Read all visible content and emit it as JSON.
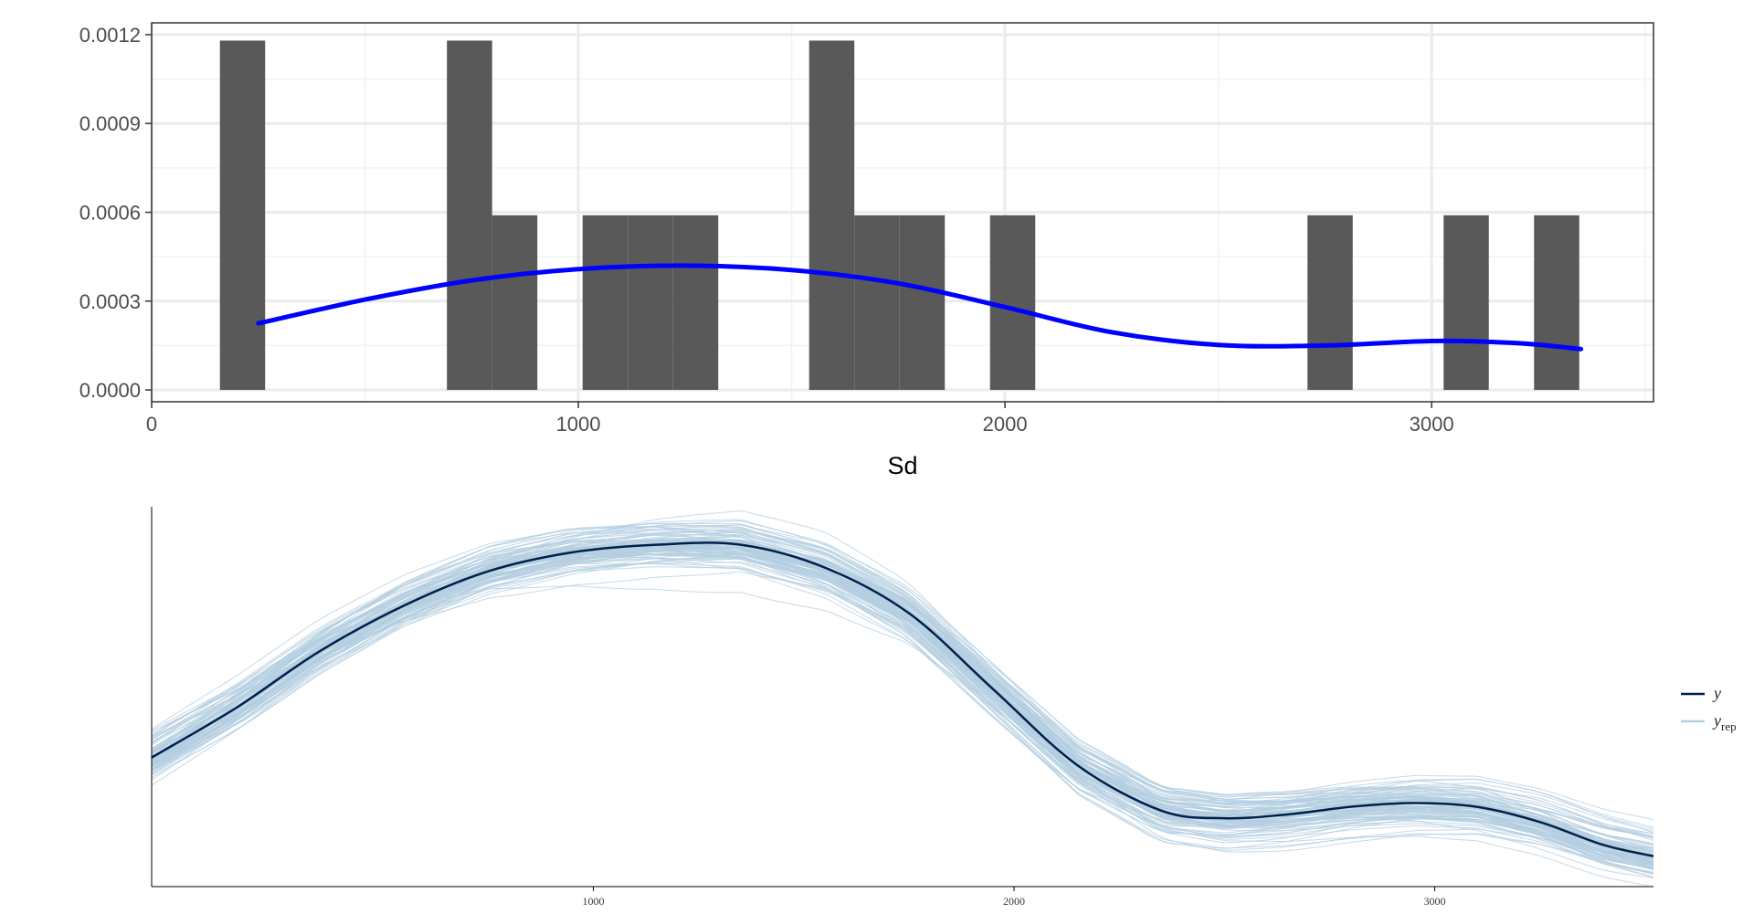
{
  "chart_data": [
    {
      "type": "bar",
      "subtype": "histogram-with-smooth",
      "xlabel": "Sd",
      "ylabel": "",
      "xlim": [
        0,
        3520
      ],
      "ylim": [
        -4e-05,
        0.00124
      ],
      "x_ticks": [
        0,
        1000,
        2000,
        3000
      ],
      "x_tick_labels": [
        "0",
        "1000",
        "2000",
        "3000"
      ],
      "y_ticks": [
        0,
        0.0003,
        0.0006,
        0.0009,
        0.0012
      ],
      "y_tick_labels": [
        "0.0000",
        "0.0003",
        "0.0006",
        "0.0009",
        "0.0012"
      ],
      "grid": true,
      "bins": [
        {
          "x0": 160,
          "x1": 266,
          "value": 0.00118
        },
        {
          "x0": 692,
          "x1": 798,
          "value": 0.00118
        },
        {
          "x0": 798,
          "x1": 904,
          "value": 0.00059
        },
        {
          "x0": 1010,
          "x1": 1116,
          "value": 0.00059
        },
        {
          "x0": 1116,
          "x1": 1222,
          "value": 0.00059
        },
        {
          "x0": 1222,
          "x1": 1328,
          "value": 0.00059
        },
        {
          "x0": 1541,
          "x1": 1647,
          "value": 0.00118
        },
        {
          "x0": 1647,
          "x1": 1753,
          "value": 0.00059
        },
        {
          "x0": 1753,
          "x1": 1859,
          "value": 0.00059
        },
        {
          "x0": 1965,
          "x1": 2071,
          "value": 0.00059
        },
        {
          "x0": 2709,
          "x1": 2815,
          "value": 0.00059
        },
        {
          "x0": 3028,
          "x1": 3134,
          "value": 0.00059
        },
        {
          "x0": 3240,
          "x1": 3346,
          "value": 0.00059
        }
      ],
      "bar_color": "#595959",
      "smooth": {
        "color": "#0000ff",
        "x": [
          250,
          500,
          750,
          1000,
          1250,
          1500,
          1750,
          2000,
          2250,
          2500,
          2750,
          3000,
          3200,
          3350
        ],
        "y": [
          0.000225,
          0.000305,
          0.00037,
          0.000408,
          0.00042,
          0.000405,
          0.00036,
          0.00028,
          0.000195,
          0.000152,
          0.00015,
          0.000165,
          0.000158,
          0.000138
        ]
      }
    },
    {
      "type": "line",
      "subtype": "posterior-predictive-density",
      "xlim": [
        -50,
        3520
      ],
      "ylim": [
        0,
        1.0
      ],
      "x_ticks": [
        1000,
        2000,
        3000
      ],
      "x_tick_labels": [
        "1000",
        "2000",
        "3000"
      ],
      "legend_position": "right",
      "series": [
        {
          "name": "y",
          "color": "#011f4b",
          "x": [
            -50,
            150,
            350,
            550,
            750,
            950,
            1150,
            1350,
            1550,
            1750,
            1950,
            2150,
            2350,
            2500,
            2650,
            2800,
            2950,
            3100,
            3250,
            3400,
            3520
          ],
          "y": [
            0.34,
            0.47,
            0.62,
            0.74,
            0.83,
            0.88,
            0.9,
            0.9,
            0.84,
            0.72,
            0.52,
            0.32,
            0.2,
            0.18,
            0.19,
            0.21,
            0.22,
            0.21,
            0.17,
            0.11,
            0.08
          ]
        },
        {
          "name": "y",
          "name_subscript": "rep",
          "color": "#b3cde0",
          "n_draws": 100
        }
      ]
    }
  ]
}
